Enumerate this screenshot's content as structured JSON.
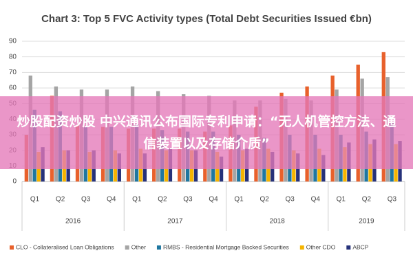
{
  "chart_data": {
    "type": "bar",
    "title": "Chart 3: Top 5 FVC Activity types (Total Debt Securities Issued €bn)",
    "category_groups": [
      {
        "label": "2016",
        "categories": [
          "Q1",
          "Q2",
          "Q3",
          "Q4"
        ]
      },
      {
        "label": "2017",
        "categories": [
          "Q1",
          "Q2",
          "Q3",
          "Q4"
        ]
      },
      {
        "label": "2018",
        "categories": [
          "Q1",
          "Q2",
          "Q3",
          "Q4"
        ]
      },
      {
        "label": "2019",
        "categories": [
          "Q1",
          "Q2",
          "Q3"
        ]
      }
    ],
    "series": [
      {
        "name": "CLO - Collateralised Loan Obligations",
        "color": "#e8612c",
        "values": [
          30,
          55,
          36,
          35,
          34,
          34,
          34,
          32,
          36,
          48,
          57,
          61,
          68,
          75,
          83
        ]
      },
      {
        "name": "Other",
        "color": "#a5a5a5",
        "values": [
          68,
          61,
          59,
          59,
          61,
          58,
          56,
          55,
          52,
          52,
          53,
          52,
          59,
          66,
          67
        ]
      },
      {
        "name": "RMBS - Residential Mortgage Backed Securities",
        "color": "#1f77a0",
        "values": [
          46,
          45,
          35,
          35,
          37,
          33,
          32,
          32,
          30,
          28,
          30,
          30,
          30,
          32,
          38
        ]
      },
      {
        "name": "Other CDO",
        "color": "#f5b400",
        "values": [
          19,
          20,
          19,
          20,
          21,
          20,
          20,
          19,
          20,
          21,
          20,
          21,
          22,
          24,
          24
        ]
      },
      {
        "name": "ABCP",
        "color": "#26327a",
        "values": [
          22,
          20,
          20,
          18,
          18,
          21,
          20,
          16,
          21,
          19,
          18,
          17,
          25,
          27,
          26
        ]
      }
    ],
    "ylim": [
      0,
      90
    ],
    "yticks": [
      0,
      10,
      20,
      30,
      40,
      50,
      60,
      70,
      80,
      90
    ],
    "grid": true,
    "legend": "bottom"
  },
  "overlay": {
    "text": "炒股配资炒股 中兴通讯公布国际专利申请：“无人机管控方法、通信装置以及存储介质”"
  }
}
